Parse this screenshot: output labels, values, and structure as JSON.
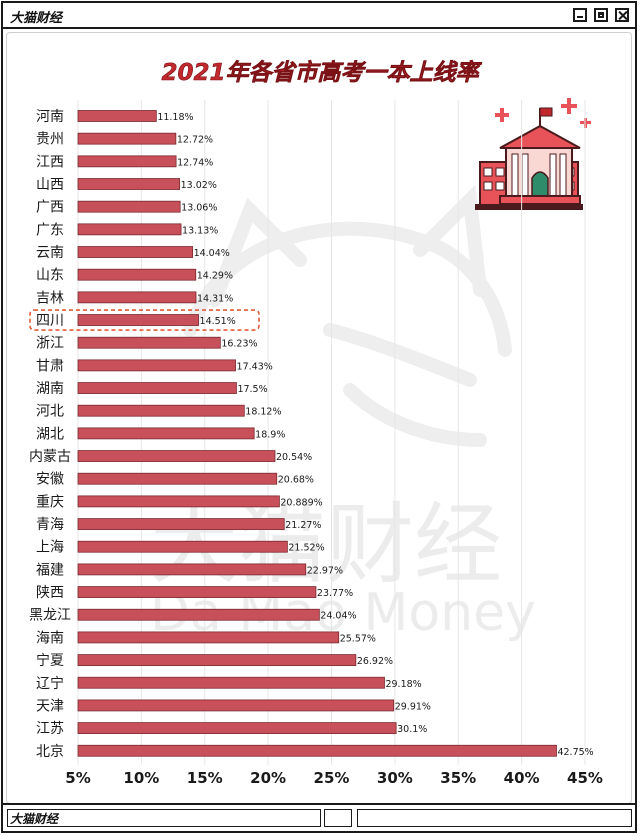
{
  "window": {
    "title": "大猫财经",
    "status_title": "大猫财经"
  },
  "watermark": {
    "cn": "大猫财经",
    "en": "Da  Mao  Money"
  },
  "colors": {
    "bar": "#c8505a",
    "bar_stroke": "#7a2a30",
    "title": "#c0282d",
    "highlight_outline": "#e05a3a"
  },
  "icons": [
    "school-building-icon",
    "sparkle-plus-icon"
  ],
  "chart_data": {
    "type": "bar",
    "orientation": "horizontal",
    "title": "2021年各省市高考一本上线率",
    "xlabel": "",
    "ylabel": "",
    "xlim": [
      5,
      45
    ],
    "ticks": [
      "5%",
      "10%",
      "15%",
      "20%",
      "25%",
      "30%",
      "35%",
      "40%",
      "45%"
    ],
    "tick_values": [
      5,
      10,
      15,
      20,
      25,
      30,
      35,
      40,
      45
    ],
    "grid": true,
    "highlight_category": "四川",
    "categories": [
      "河南",
      "贵州",
      "江西",
      "山西",
      "广西",
      "广东",
      "云南",
      "山东",
      "吉林",
      "四川",
      "浙江",
      "甘肃",
      "湖南",
      "河北",
      "湖北",
      "内蒙古",
      "安徽",
      "重庆",
      "青海",
      "上海",
      "福建",
      "陕西",
      "黑龙江",
      "海南",
      "宁夏",
      "辽宁",
      "天津",
      "江苏",
      "北京"
    ],
    "values": [
      11.18,
      12.72,
      12.74,
      13.02,
      13.06,
      13.13,
      14.04,
      14.29,
      14.31,
      14.51,
      16.23,
      17.43,
      17.5,
      18.12,
      18.9,
      20.54,
      20.68,
      20.889,
      21.27,
      21.52,
      22.97,
      23.77,
      24.04,
      25.57,
      26.92,
      29.18,
      29.91,
      30.1,
      42.75
    ],
    "value_labels": [
      "11.18%",
      "12.72%",
      "12.74%",
      "13.02%",
      "13.06%",
      "13.13%",
      "14.04%",
      "14.29%",
      "14.31%",
      "14.51%",
      "16.23%",
      "17.43%",
      "17.5%",
      "18.12%",
      "18.9%",
      "20.54%",
      "20.68%",
      "20.889%",
      "21.27%",
      "21.52%",
      "22.97%",
      "23.77%",
      "24.04%",
      "25.57%",
      "26.92%",
      "29.18%",
      "29.91%",
      "30.1%",
      "42.75%"
    ]
  }
}
